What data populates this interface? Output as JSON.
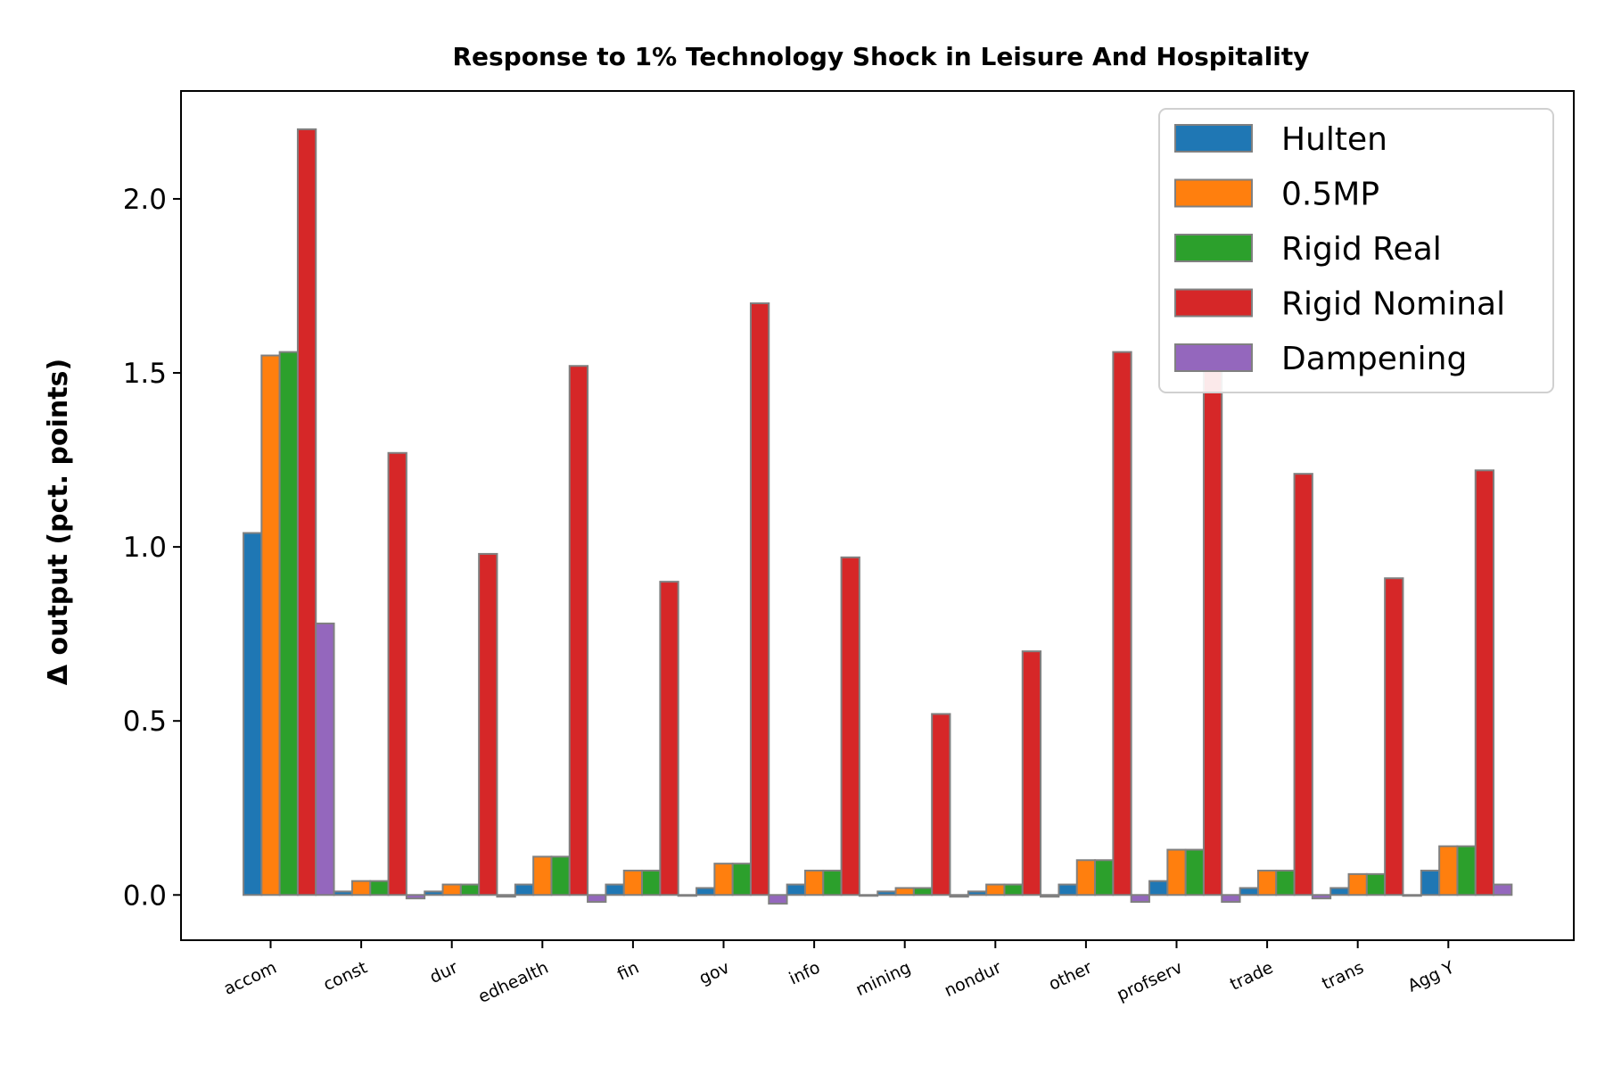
{
  "chart_data": {
    "type": "bar",
    "title": "Response to 1% Technology Shock in Leisure And Hospitality",
    "xlabel": "",
    "ylabel": "Δ output (pct. points)",
    "ylim": [
      -0.13,
      2.31
    ],
    "yticks": [
      0.0,
      0.5,
      1.0,
      1.5,
      2.0
    ],
    "ytick_labels": [
      "0.0",
      "0.5",
      "1.0",
      "1.5",
      "2.0"
    ],
    "grid": false,
    "legend_position": "top-right",
    "categories": [
      "accom",
      "const",
      "dur",
      "edhealth",
      "fin",
      "gov",
      "info",
      "mining",
      "nondur",
      "other",
      "profserv",
      "trade",
      "trans",
      "Agg Y"
    ],
    "series": [
      {
        "name": "Hulten",
        "color": "#1f77b4",
        "values": [
          1.04,
          0.01,
          0.01,
          0.03,
          0.03,
          0.02,
          0.03,
          0.01,
          0.01,
          0.03,
          0.04,
          0.02,
          0.02,
          0.07
        ]
      },
      {
        "name": "0.5MP",
        "color": "#ff7f0e",
        "values": [
          1.55,
          0.04,
          0.03,
          0.11,
          0.07,
          0.09,
          0.07,
          0.02,
          0.03,
          0.1,
          0.13,
          0.07,
          0.06,
          0.14
        ]
      },
      {
        "name": "Rigid Real",
        "color": "#2ca02c",
        "values": [
          1.56,
          0.04,
          0.03,
          0.11,
          0.07,
          0.09,
          0.07,
          0.02,
          0.03,
          0.1,
          0.13,
          0.07,
          0.06,
          0.14
        ]
      },
      {
        "name": "Rigid Nominal",
        "color": "#d62728",
        "values": [
          2.2,
          1.27,
          0.98,
          1.52,
          0.9,
          1.7,
          0.97,
          0.52,
          0.7,
          1.56,
          1.52,
          1.21,
          0.91,
          1.22
        ]
      },
      {
        "name": "Dampening",
        "color": "#9467bd",
        "values": [
          0.78,
          -0.01,
          -0.005,
          -0.02,
          0.0,
          -0.025,
          0.0,
          -0.005,
          -0.005,
          -0.02,
          -0.02,
          -0.01,
          0.0,
          0.03
        ]
      }
    ],
    "bar_edge_color": "#808080"
  }
}
